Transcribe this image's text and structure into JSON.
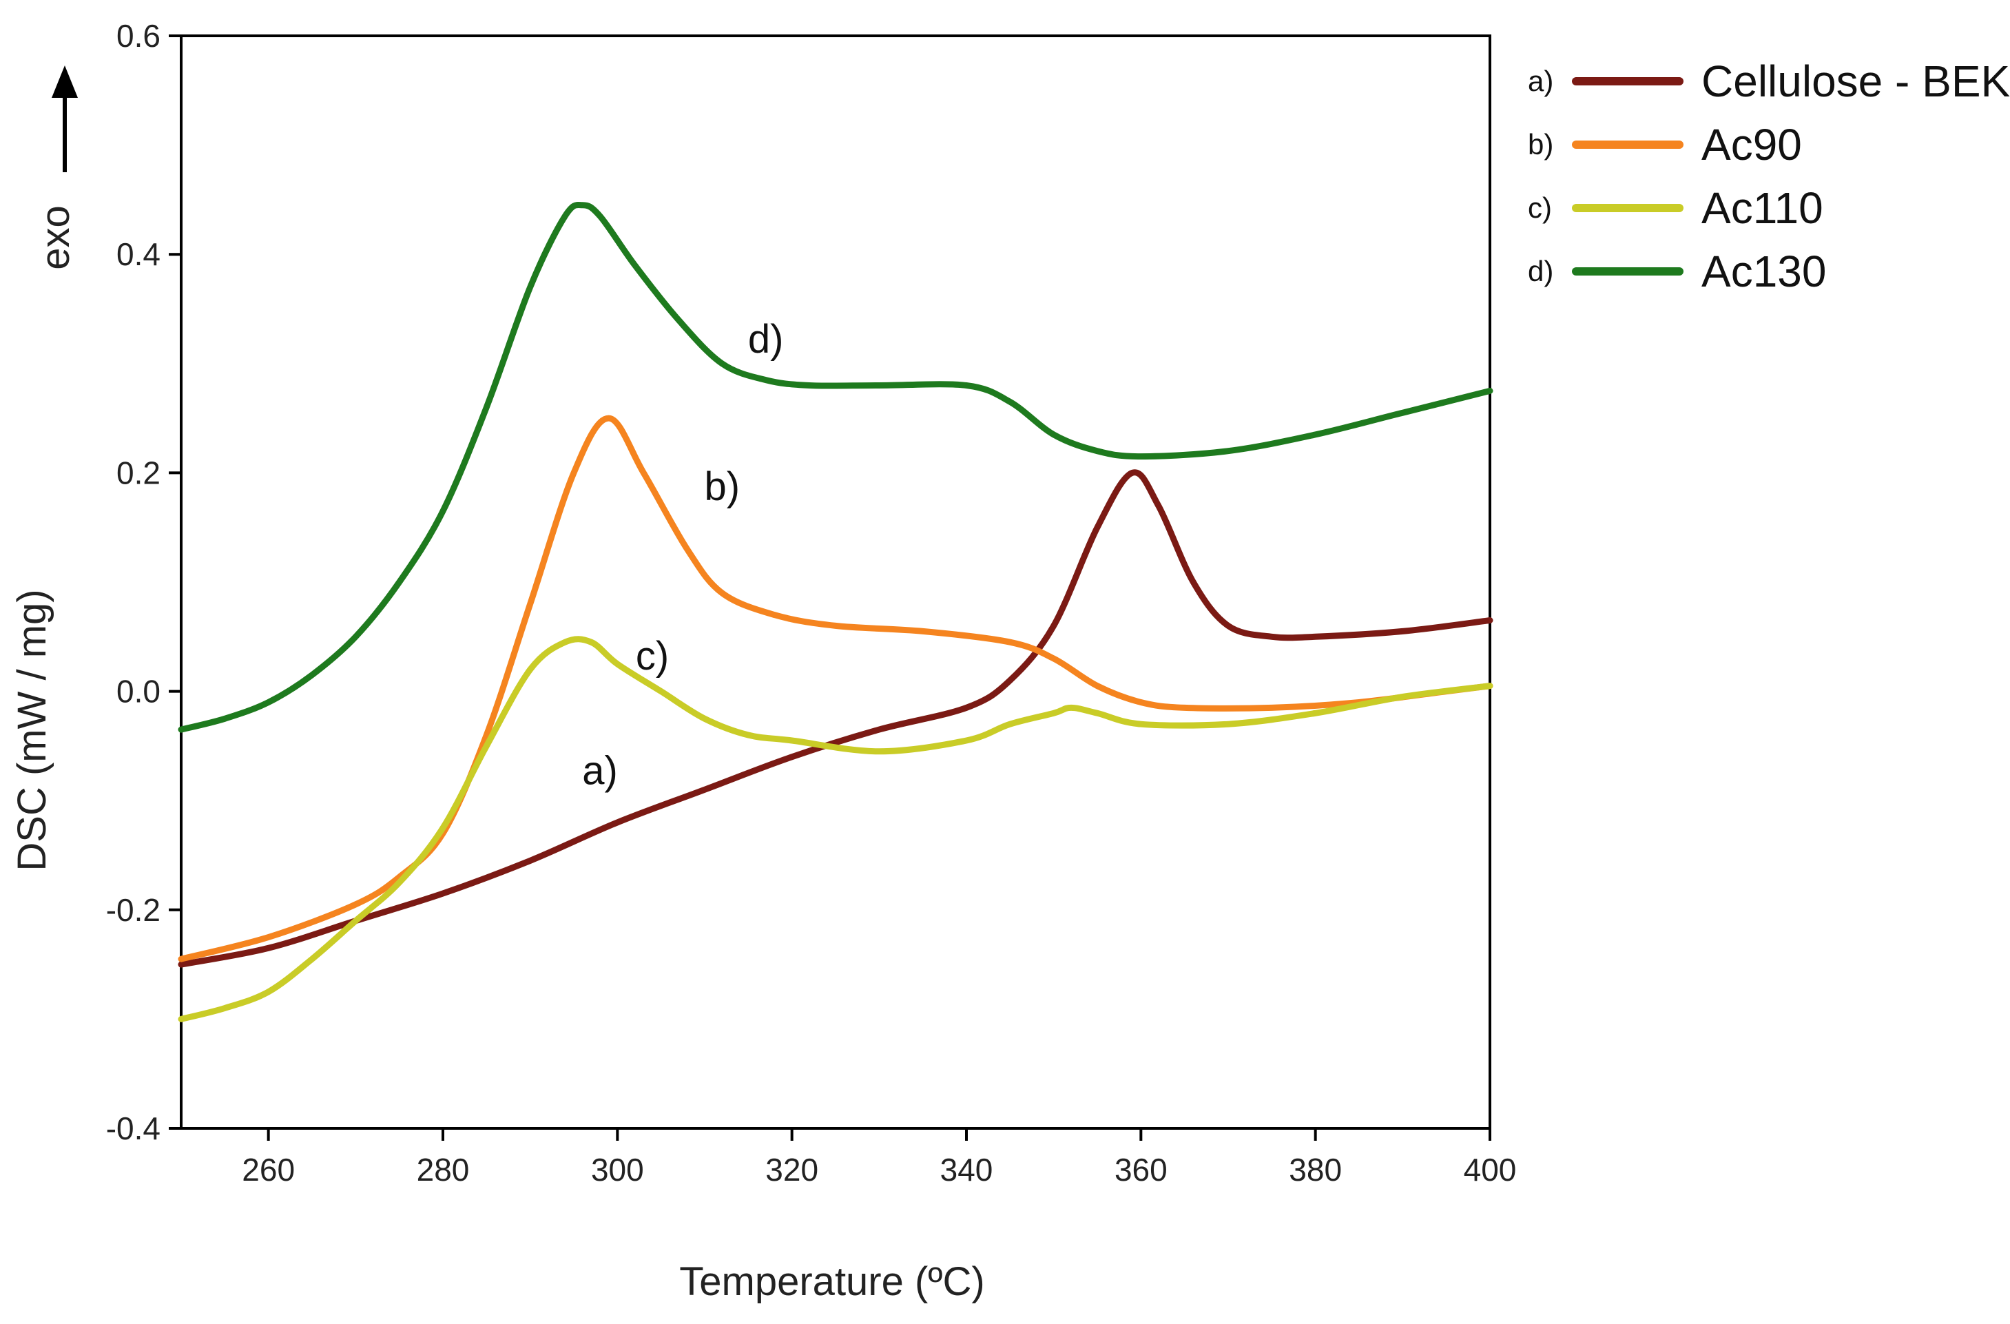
{
  "chart_data": {
    "type": "line",
    "title": "",
    "xlabel": "Temperature (ºC)",
    "ylabel": "DSC (mW / mg)",
    "exo_label": "exo",
    "xlim": [
      250,
      400
    ],
    "ylim": [
      -0.4,
      0.6
    ],
    "xticks": [
      260,
      280,
      300,
      320,
      340,
      360,
      380,
      400
    ],
    "yticks": [
      -0.4,
      -0.2,
      0.0,
      0.2,
      0.4,
      0.6
    ],
    "ytick_labels": [
      "-0.4",
      "-0.2",
      "0.0",
      "0.2",
      "0.4",
      "0.6"
    ],
    "grid": false,
    "legend_position": "right",
    "series": [
      {
        "key": "a",
        "letter": "a)",
        "name": "Cellulose - BEKP",
        "color": "#7b1a14",
        "annotation": {
          "text": "a)",
          "x": 298,
          "y": -0.085
        },
        "points": [
          [
            250,
            -0.25
          ],
          [
            260,
            -0.235
          ],
          [
            270,
            -0.21
          ],
          [
            280,
            -0.185
          ],
          [
            290,
            -0.155
          ],
          [
            300,
            -0.12
          ],
          [
            310,
            -0.09
          ],
          [
            320,
            -0.06
          ],
          [
            330,
            -0.035
          ],
          [
            340,
            -0.015
          ],
          [
            345,
            0.01
          ],
          [
            350,
            0.06
          ],
          [
            355,
            0.15
          ],
          [
            359,
            0.2
          ],
          [
            362,
            0.17
          ],
          [
            366,
            0.1
          ],
          [
            370,
            0.06
          ],
          [
            375,
            0.05
          ],
          [
            380,
            0.05
          ],
          [
            390,
            0.055
          ],
          [
            400,
            0.065
          ]
        ]
      },
      {
        "key": "b",
        "letter": "b)",
        "name": "Ac90",
        "color": "#f5841f",
        "annotation": {
          "text": "b)",
          "x": 312,
          "y": 0.175
        },
        "points": [
          [
            250,
            -0.245
          ],
          [
            260,
            -0.225
          ],
          [
            270,
            -0.195
          ],
          [
            275,
            -0.17
          ],
          [
            280,
            -0.13
          ],
          [
            285,
            -0.04
          ],
          [
            290,
            0.08
          ],
          [
            295,
            0.2
          ],
          [
            299,
            0.25
          ],
          [
            303,
            0.2
          ],
          [
            308,
            0.13
          ],
          [
            312,
            0.09
          ],
          [
            318,
            0.07
          ],
          [
            325,
            0.06
          ],
          [
            335,
            0.055
          ],
          [
            345,
            0.045
          ],
          [
            350,
            0.03
          ],
          [
            355,
            0.005
          ],
          [
            360,
            -0.01
          ],
          [
            365,
            -0.015
          ],
          [
            375,
            -0.015
          ],
          [
            385,
            -0.01
          ],
          [
            395,
            0.0
          ],
          [
            400,
            0.005
          ]
        ]
      },
      {
        "key": "c",
        "letter": "c)",
        "name": "Ac110",
        "color": "#c9cc27",
        "annotation": {
          "text": "c)",
          "x": 304,
          "y": 0.02
        },
        "points": [
          [
            250,
            -0.3
          ],
          [
            255,
            -0.29
          ],
          [
            260,
            -0.275
          ],
          [
            265,
            -0.245
          ],
          [
            270,
            -0.21
          ],
          [
            275,
            -0.175
          ],
          [
            280,
            -0.125
          ],
          [
            285,
            -0.05
          ],
          [
            290,
            0.02
          ],
          [
            294,
            0.045
          ],
          [
            297,
            0.045
          ],
          [
            300,
            0.025
          ],
          [
            305,
            0.0
          ],
          [
            310,
            -0.025
          ],
          [
            315,
            -0.04
          ],
          [
            320,
            -0.045
          ],
          [
            330,
            -0.055
          ],
          [
            340,
            -0.045
          ],
          [
            345,
            -0.03
          ],
          [
            350,
            -0.02
          ],
          [
            352,
            -0.015
          ],
          [
            355,
            -0.02
          ],
          [
            360,
            -0.03
          ],
          [
            370,
            -0.03
          ],
          [
            380,
            -0.02
          ],
          [
            390,
            -0.005
          ],
          [
            400,
            0.005
          ]
        ]
      },
      {
        "key": "d",
        "letter": "d)",
        "name": "Ac130",
        "color": "#1e7a1e",
        "annotation": {
          "text": "d)",
          "x": 317,
          "y": 0.31
        },
        "points": [
          [
            250,
            -0.035
          ],
          [
            255,
            -0.025
          ],
          [
            260,
            -0.01
          ],
          [
            265,
            0.015
          ],
          [
            270,
            0.05
          ],
          [
            275,
            0.1
          ],
          [
            280,
            0.165
          ],
          [
            285,
            0.26
          ],
          [
            290,
            0.37
          ],
          [
            294,
            0.435
          ],
          [
            296,
            0.445
          ],
          [
            298,
            0.435
          ],
          [
            302,
            0.39
          ],
          [
            307,
            0.34
          ],
          [
            312,
            0.3
          ],
          [
            317,
            0.285
          ],
          [
            322,
            0.28
          ],
          [
            330,
            0.28
          ],
          [
            340,
            0.28
          ],
          [
            345,
            0.265
          ],
          [
            350,
            0.235
          ],
          [
            355,
            0.22
          ],
          [
            360,
            0.215
          ],
          [
            370,
            0.22
          ],
          [
            380,
            0.235
          ],
          [
            390,
            0.255
          ],
          [
            400,
            0.275
          ]
        ]
      }
    ]
  }
}
